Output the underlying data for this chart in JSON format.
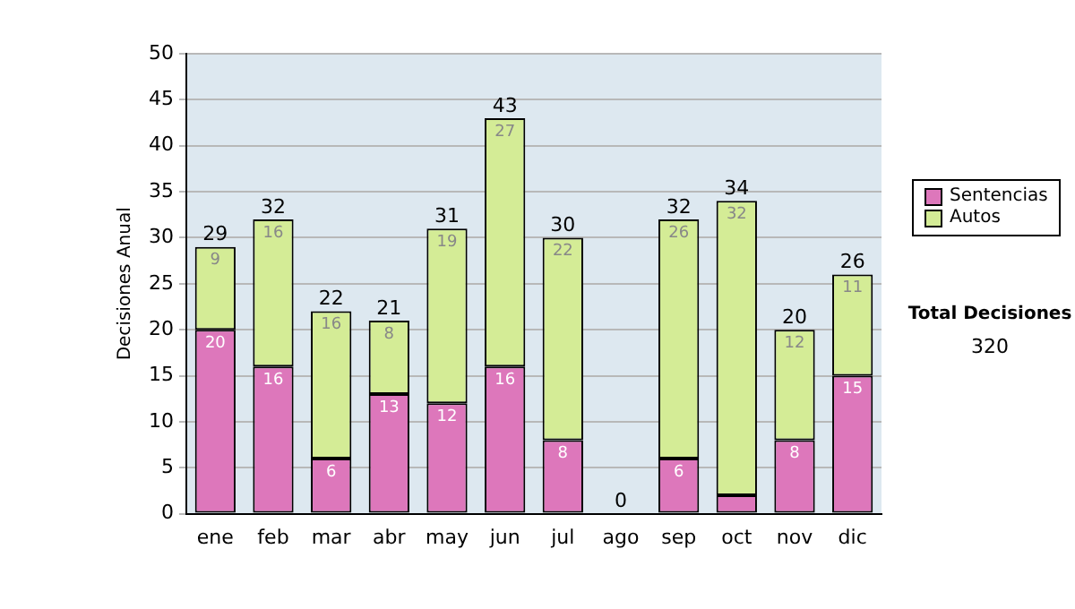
{
  "chart_data": {
    "type": "bar",
    "stacked": true,
    "ylabel": "Decisiones Anual",
    "categories": [
      "ene",
      "feb",
      "mar",
      "abr",
      "may",
      "jun",
      "jul",
      "ago",
      "sep",
      "oct",
      "nov",
      "dic"
    ],
    "series": [
      {
        "name": "Sentencias",
        "color": "#dd77bb",
        "values": [
          20,
          16,
          6,
          13,
          12,
          16,
          8,
          0,
          6,
          2,
          8,
          15
        ],
        "value_labels": [
          "20",
          "16",
          "6",
          "13",
          "12",
          "16",
          "8",
          null,
          "6",
          null,
          "8",
          "15"
        ]
      },
      {
        "name": "Autos",
        "color": "#d4ec96",
        "values": [
          9,
          16,
          16,
          8,
          19,
          27,
          22,
          0,
          26,
          32,
          12,
          11
        ],
        "value_labels": [
          "9",
          "16",
          "16",
          "8",
          "19",
          "27",
          "22",
          null,
          "26",
          "32",
          "12",
          "11"
        ]
      }
    ],
    "totals": [
      "29",
      "32",
      "22",
      "21",
      "31",
      "43",
      "30",
      "0",
      "32",
      "34",
      "20",
      "26"
    ],
    "ylim": [
      0,
      50
    ],
    "yticks": [
      0,
      5,
      10,
      15,
      20,
      25,
      30,
      35,
      40,
      45,
      50
    ],
    "grid": "y",
    "legend": "right",
    "annotations": [
      "Total Decisiones",
      "320"
    ]
  }
}
